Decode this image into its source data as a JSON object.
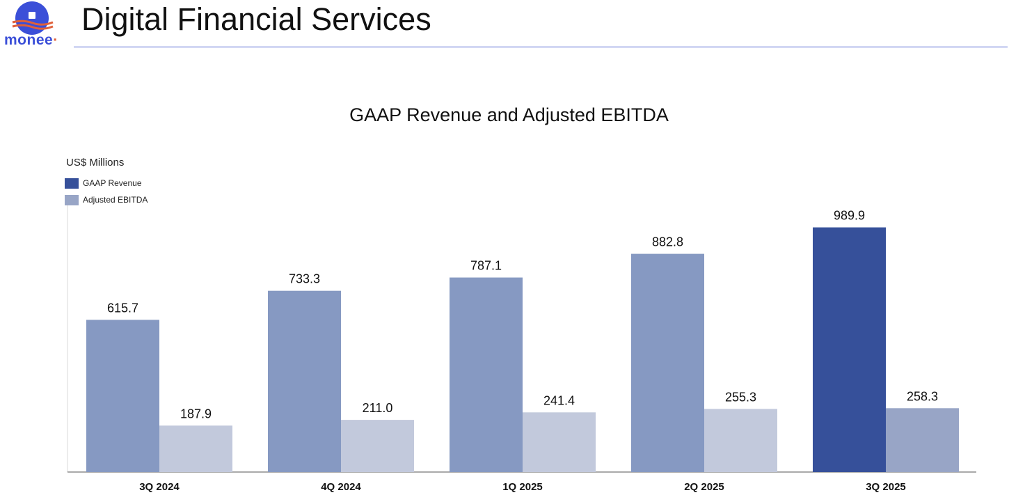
{
  "brand": {
    "logo_text": "monee",
    "colors": {
      "logo_blue": "#3b4fd8",
      "logo_orange": "#e0603a"
    }
  },
  "header": {
    "title": "Digital Financial Services"
  },
  "chart_data": {
    "type": "bar",
    "title": "GAAP Revenue and Adjusted EBITDA",
    "unit_label": "US$ Millions",
    "categories": [
      "3Q 2024",
      "4Q 2024",
      "1Q 2025",
      "2Q 2025",
      "3Q 2025"
    ],
    "series": [
      {
        "name": "GAAP Revenue",
        "values": [
          615.7,
          733.3,
          787.1,
          882.8,
          989.9
        ],
        "color": "#8699c2",
        "highlight_color": "#36509a",
        "highlight_index": 4
      },
      {
        "name": "Adjusted EBITDA",
        "values": [
          187.9,
          211.0,
          241.4,
          255.3,
          258.3
        ],
        "color": "#c2c9dc",
        "highlight_color": "#98a5c6",
        "highlight_index": 4
      }
    ],
    "legend": [
      {
        "label": "GAAP Revenue",
        "color": "#36509a"
      },
      {
        "label": "Adjusted EBITDA",
        "color": "#98a5c6"
      }
    ],
    "data_labels": [
      "615.7",
      "733.3",
      "787.1",
      "882.8",
      "989.9",
      "187.9",
      "211.0",
      "241.4",
      "255.3",
      "258.3"
    ],
    "ylim": [
      0,
      1000
    ],
    "legend_position": "top-left",
    "grid": false
  }
}
